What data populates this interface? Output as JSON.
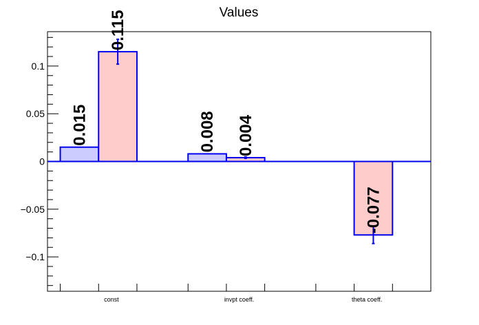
{
  "chart_data": {
    "type": "bar",
    "title": "Values",
    "xlabel": "",
    "ylabel": "",
    "categories": [
      "const",
      "invpt coeff.",
      "theta coeff."
    ],
    "ylim": [
      -0.136,
      0.136
    ],
    "yticks": [
      -0.1,
      -0.05,
      0,
      0.05,
      0.1
    ],
    "ytick_labels": [
      "−0.1",
      "−0.05",
      "0",
      "0.05",
      "0.1"
    ],
    "grid": false,
    "legend": "none",
    "bars": [
      {
        "category": 0,
        "slot": 0,
        "value": 0.015,
        "label": "0.015",
        "error": null,
        "color": "#ccccff"
      },
      {
        "category": 0,
        "slot": 1,
        "value": 0.115,
        "label": "0.115",
        "error": 0.013,
        "color": "#ffcccc"
      },
      {
        "category": 1,
        "slot": 0,
        "value": 0.008,
        "label": "0.008",
        "error": null,
        "color": "#ccccff"
      },
      {
        "category": 1,
        "slot": 1,
        "value": 0.004,
        "label": "0.004",
        "error": 0.0008,
        "color": "#ffcccc"
      },
      {
        "category": 2,
        "slot": 1,
        "value": -0.077,
        "label": "-0.077",
        "error": 0.009,
        "color": "#ffcccc"
      }
    ],
    "colors": {
      "edge": "#0000ee",
      "axis": "#000000"
    }
  }
}
